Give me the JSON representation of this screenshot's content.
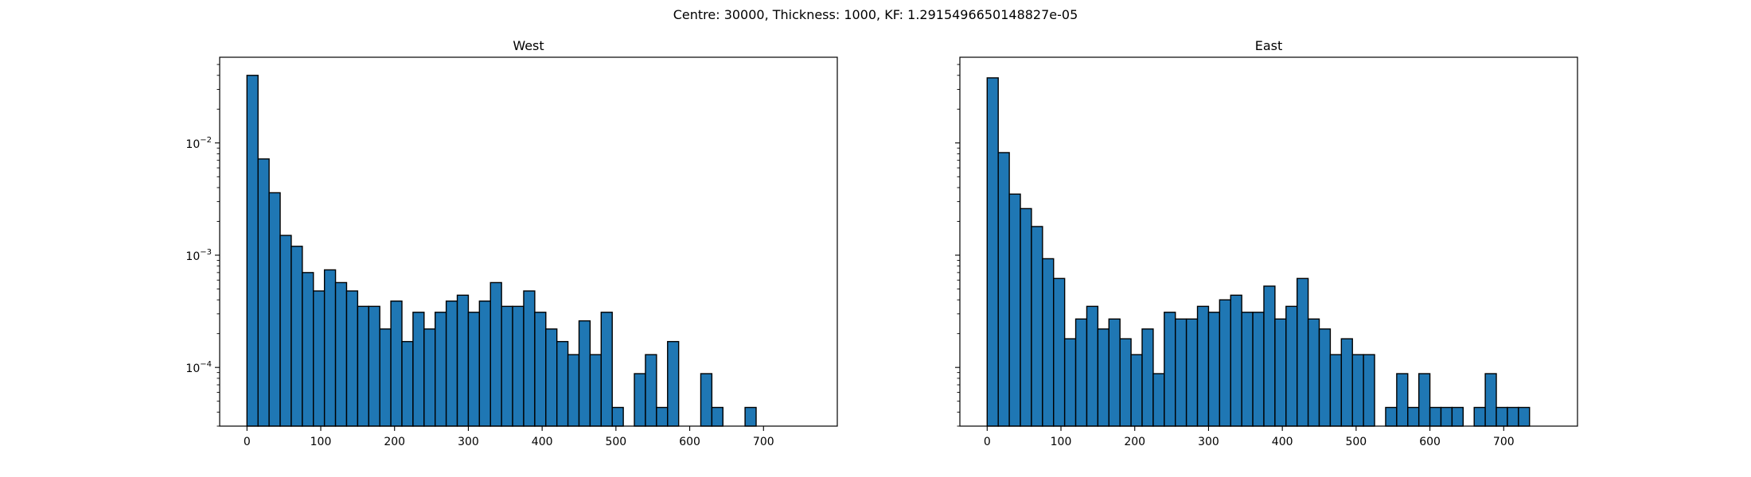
{
  "suptitle": "Centre: 30000, Thickness: 1000, KF: 1.2915496650148827e-05",
  "chart_data": [
    {
      "type": "bar",
      "title": "West",
      "xlabel": "",
      "ylabel": "",
      "yscale": "log",
      "xlim": [
        -37,
        800
      ],
      "ylim": [
        3e-05,
        0.058
      ],
      "bin_width": 15,
      "bar_color": "#1f77b4",
      "edge_color": "#000000",
      "x_ticks": [
        0,
        100,
        200,
        300,
        400,
        500,
        600,
        700
      ],
      "x_tick_labels": [
        "0",
        "100",
        "200",
        "300",
        "400",
        "500",
        "600",
        "700"
      ],
      "y_ticks": [
        0.01,
        0.001,
        0.0001
      ],
      "y_tick_labels": [
        [
          "10",
          "−2"
        ],
        [
          "10",
          "−3"
        ],
        [
          "10",
          "−4"
        ]
      ],
      "bin_starts": [
        0,
        15,
        30,
        45,
        60,
        75,
        90,
        105,
        120,
        135,
        150,
        165,
        180,
        195,
        210,
        225,
        240,
        255,
        270,
        285,
        300,
        315,
        330,
        345,
        360,
        375,
        390,
        405,
        420,
        435,
        450,
        465,
        480,
        495,
        510,
        525,
        540,
        555,
        570,
        585,
        600,
        615,
        630,
        645,
        660,
        675,
        690
      ],
      "values": [
        0.04,
        0.0072,
        0.0036,
        0.0015,
        0.0012,
        0.0007,
        0.00048,
        0.00074,
        0.00057,
        0.00048,
        0.00035,
        0.00035,
        0.00022,
        0.00039,
        0.00017,
        0.00031,
        0.00022,
        0.00031,
        0.00039,
        0.00044,
        0.00031,
        0.00039,
        0.00057,
        0.00035,
        0.00035,
        0.00048,
        0.00031,
        0.00022,
        0.00017,
        0.00013,
        0.00026,
        0.00013,
        0.00031,
        4.4e-05,
        0,
        8.8e-05,
        0.00013,
        4.4e-05,
        0.00017,
        0,
        0,
        8.8e-05,
        4.4e-05,
        0,
        0,
        4.4e-05,
        0
      ]
    },
    {
      "type": "bar",
      "title": "East",
      "xlabel": "",
      "ylabel": "",
      "yscale": "log",
      "xlim": [
        -37,
        800
      ],
      "ylim": [
        3e-05,
        0.058
      ],
      "bin_width": 15,
      "bar_color": "#1f77b4",
      "edge_color": "#000000",
      "x_ticks": [
        0,
        100,
        200,
        300,
        400,
        500,
        600,
        700
      ],
      "x_tick_labels": [
        "0",
        "100",
        "200",
        "300",
        "400",
        "500",
        "600",
        "700"
      ],
      "y_ticks": [
        0.01,
        0.001,
        0.0001
      ],
      "y_tick_labels": [],
      "bin_starts": [
        0,
        15,
        30,
        45,
        60,
        75,
        90,
        105,
        120,
        135,
        150,
        165,
        180,
        195,
        210,
        225,
        240,
        255,
        270,
        285,
        300,
        315,
        330,
        345,
        360,
        375,
        390,
        405,
        420,
        435,
        450,
        465,
        480,
        495,
        510,
        525,
        540,
        555,
        570,
        585,
        600,
        615,
        630,
        645,
        660,
        675,
        690,
        705,
        720,
        735
      ],
      "values": [
        0.038,
        0.0082,
        0.0035,
        0.0026,
        0.0018,
        0.00093,
        0.00062,
        0.00018,
        0.00027,
        0.00035,
        0.00022,
        0.00027,
        0.00018,
        0.00013,
        0.00022,
        8.8e-05,
        0.00031,
        0.00027,
        0.00027,
        0.00035,
        0.00031,
        0.0004,
        0.00044,
        0.00031,
        0.00031,
        0.00053,
        0.00027,
        0.00035,
        0.00062,
        0.00027,
        0.00022,
        0.00013,
        0.00018,
        0.00013,
        0.00013,
        0,
        4.4e-05,
        8.8e-05,
        4.4e-05,
        8.8e-05,
        4.4e-05,
        4.4e-05,
        4.4e-05,
        0,
        4.4e-05,
        8.8e-05,
        4.4e-05,
        4.4e-05,
        4.4e-05,
        0
      ]
    }
  ]
}
